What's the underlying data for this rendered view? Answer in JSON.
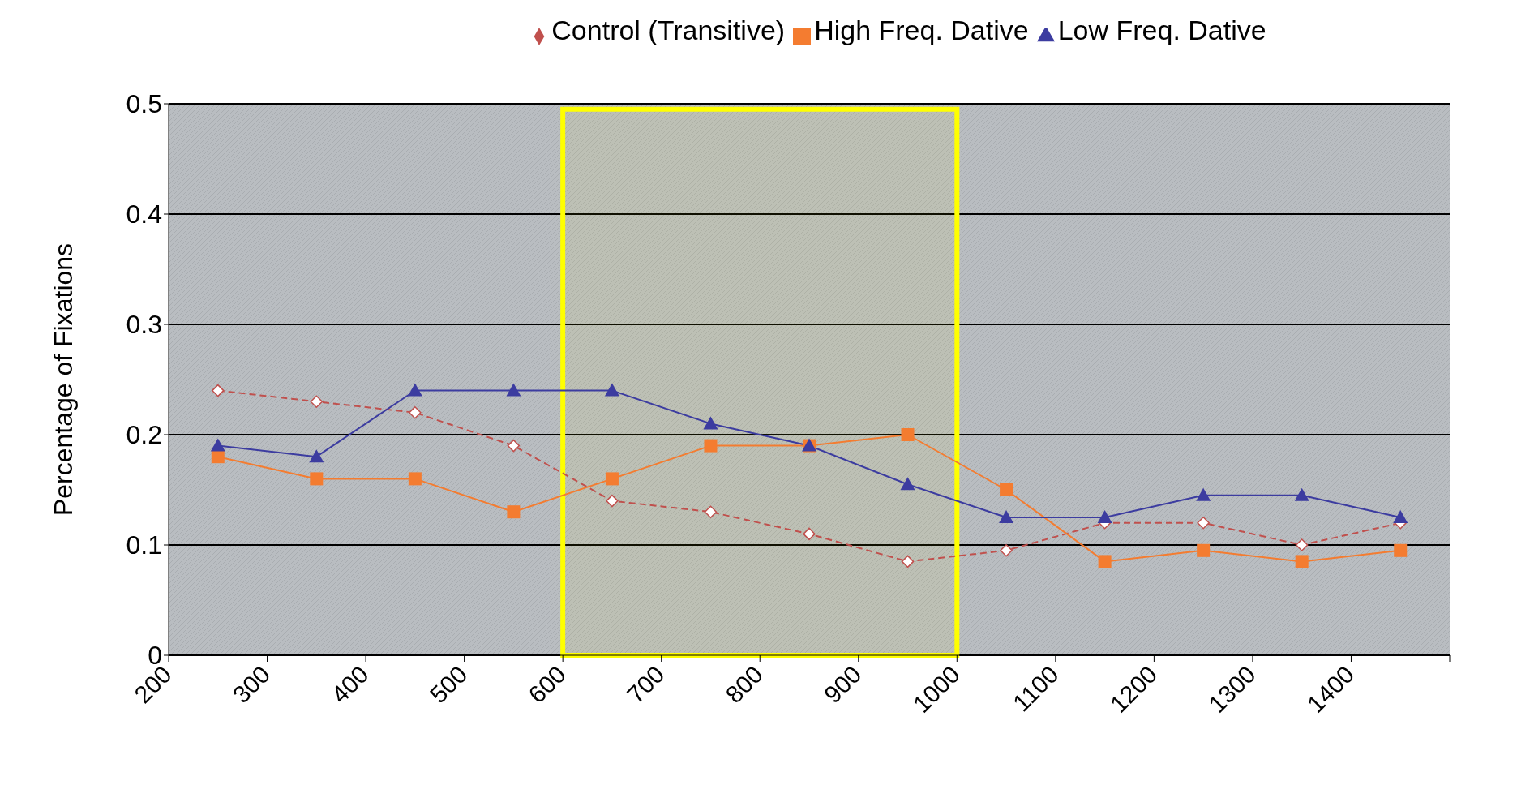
{
  "chart_data": {
    "type": "line",
    "ylabel": "Percentage of Fixations",
    "x": [
      250,
      350,
      450,
      550,
      650,
      750,
      850,
      950,
      1050,
      1150,
      1250,
      1350,
      1450
    ],
    "xlim": [
      200,
      1500
    ],
    "xticks": [
      200,
      300,
      400,
      500,
      600,
      700,
      800,
      900,
      1000,
      1100,
      1200,
      1300,
      1400,
      {
        "value": 1500,
        "label": null
      }
    ],
    "ylim": [
      0,
      0.5
    ],
    "yticks": [
      0,
      0.1,
      0.2,
      0.3,
      0.4,
      0.5
    ],
    "grid": "y",
    "legend": "top",
    "series": [
      {
        "name": "Control (Transitive)",
        "color": "#c0504d",
        "marker": "diamond",
        "line_style": "dashed",
        "values": [
          0.24,
          0.23,
          0.22,
          0.19,
          0.14,
          0.13,
          0.11,
          0.085,
          0.095,
          0.12,
          0.12,
          0.1,
          0.12
        ]
      },
      {
        "name": "High Freq. Dative",
        "color": "#f47c30",
        "marker": "square",
        "line_style": "solid",
        "values": [
          0.18,
          0.16,
          0.16,
          0.13,
          0.16,
          0.19,
          0.19,
          0.2,
          0.15,
          0.085,
          0.095,
          0.085,
          0.095
        ]
      },
      {
        "name": "Low Freq. Dative",
        "color": "#3c3ca0",
        "marker": "triangle",
        "line_style": "solid",
        "values": [
          0.19,
          0.18,
          0.24,
          0.24,
          0.24,
          0.21,
          0.19,
          0.155,
          0.125,
          0.125,
          0.145,
          0.145,
          0.125
        ]
      }
    ],
    "bands": [
      {
        "axis": "x",
        "from": 600,
        "to": 1000,
        "color": "#ffff00"
      }
    ]
  }
}
